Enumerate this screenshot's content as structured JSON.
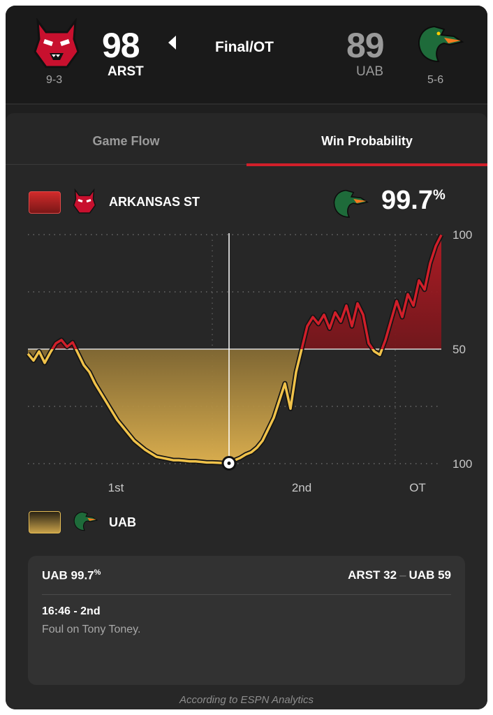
{
  "header": {
    "home": {
      "score": "98",
      "abbr": "ARST",
      "record": "9-3",
      "logo": "red-wolf-logo"
    },
    "away": {
      "score": "89",
      "abbr": "UAB",
      "record": "5-6",
      "logo": "green-dragon-logo"
    },
    "status": "Final/OT",
    "winner_indicator": "left-arrow-icon"
  },
  "tabs": [
    {
      "label": "Game Flow",
      "active": false
    },
    {
      "label": "Win Probability",
      "active": true
    }
  ],
  "legend": {
    "home_name": "ARKANSAS ST",
    "away_name": "UAB",
    "current_prob": "99.7",
    "current_prob_unit": "%"
  },
  "colors": {
    "home": "#d11f2a",
    "away": "#f0c24a",
    "background": "#272727"
  },
  "chart_data": {
    "type": "line",
    "y_labels": [
      "100",
      "50",
      "100"
    ],
    "x_labels": [
      "1st",
      "2nd",
      "OT"
    ],
    "ylim": [
      -100,
      100
    ],
    "series": [
      {
        "values": [
          [
            0,
            -4
          ],
          [
            1,
            -10
          ],
          [
            2,
            -2
          ],
          [
            3,
            -12
          ],
          [
            4,
            -3
          ],
          [
            5,
            5
          ],
          [
            6,
            8
          ],
          [
            7,
            2
          ],
          [
            8,
            6
          ],
          [
            9,
            -4
          ],
          [
            10,
            -14
          ],
          [
            11,
            -20
          ],
          [
            12,
            -30
          ],
          [
            13,
            -38
          ],
          [
            14,
            -46
          ],
          [
            15,
            -54
          ],
          [
            16,
            -62
          ],
          [
            17,
            -68
          ],
          [
            18,
            -74
          ],
          [
            19,
            -80
          ],
          [
            20,
            -84
          ],
          [
            21,
            -88
          ],
          [
            22,
            -91
          ],
          [
            23,
            -94
          ],
          [
            24,
            -95
          ],
          [
            25,
            -96
          ],
          [
            26,
            -97
          ],
          [
            27,
            -97
          ],
          [
            28,
            -97.5
          ],
          [
            29,
            -98
          ],
          [
            30,
            -98
          ],
          [
            31,
            -98.5
          ],
          [
            32,
            -99
          ],
          [
            33,
            -99
          ],
          [
            34,
            -99.2
          ],
          [
            35,
            -99.5
          ],
          [
            36,
            -99.7
          ],
          [
            37,
            -97
          ],
          [
            38,
            -95
          ],
          [
            39,
            -92
          ],
          [
            40,
            -90
          ],
          [
            41,
            -86
          ],
          [
            42,
            -80
          ],
          [
            43,
            -70
          ],
          [
            44,
            -60
          ],
          [
            45,
            -45
          ],
          [
            46,
            -30
          ],
          [
            47,
            -52
          ],
          [
            48,
            -20
          ],
          [
            49,
            0
          ],
          [
            50,
            20
          ],
          [
            51,
            28
          ],
          [
            52,
            22
          ],
          [
            53,
            30
          ],
          [
            54,
            18
          ],
          [
            55,
            32
          ],
          [
            56,
            24
          ],
          [
            57,
            38
          ],
          [
            58,
            20
          ],
          [
            59,
            40
          ],
          [
            60,
            30
          ],
          [
            61,
            5
          ],
          [
            62,
            -2
          ],
          [
            63,
            -5
          ],
          [
            64,
            8
          ],
          [
            65,
            25
          ],
          [
            66,
            42
          ],
          [
            67,
            28
          ],
          [
            68,
            48
          ],
          [
            69,
            38
          ],
          [
            70,
            60
          ],
          [
            71,
            52
          ],
          [
            72,
            75
          ],
          [
            73,
            90
          ],
          [
            74,
            99.7
          ]
        ]
      }
    ]
  },
  "info": {
    "leader": "UAB 99.7",
    "leader_unit": "%",
    "score_home": "ARST 32",
    "score_sep": "–",
    "score_away": "UAB 59",
    "play_time": "16:46 - 2nd",
    "play_text": "Foul on Tony Toney."
  },
  "footer": "According to ESPN Analytics"
}
